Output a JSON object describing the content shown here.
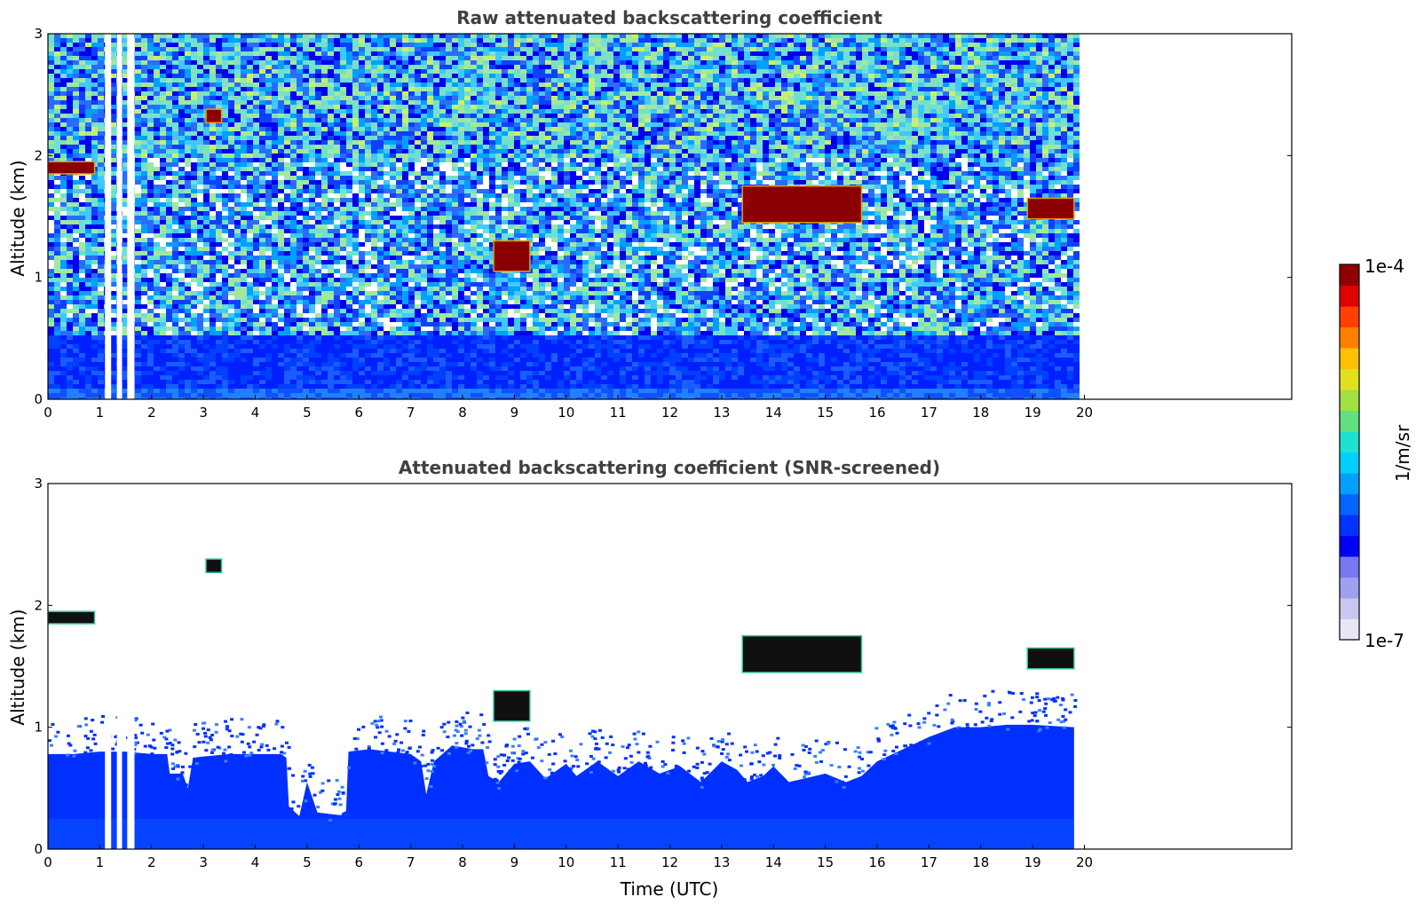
{
  "chart_data": [
    {
      "type": "heatmap",
      "title": "Raw attenuated backscattering coefficient",
      "xlabel": "",
      "ylabel": "Altitude (km)",
      "xlim": [
        0,
        24
      ],
      "ylim": [
        0,
        3
      ],
      "xticks": [
        0,
        1,
        2,
        3,
        4,
        5,
        6,
        7,
        8,
        9,
        10,
        11,
        12,
        13,
        14,
        15,
        16,
        17,
        18,
        19,
        20
      ],
      "yticks": [
        0,
        1,
        2,
        3
      ],
      "data_x_end": 19.8,
      "gaps_x": [
        [
          1.1,
          1.22
        ],
        [
          1.33,
          1.43
        ],
        [
          1.53,
          1.67
        ]
      ],
      "layers": [
        {
          "x": [
            0.0,
            0.9
          ],
          "alt": [
            1.85,
            1.95
          ],
          "level": "high"
        },
        {
          "x": [
            3.05,
            3.35
          ],
          "alt": [
            2.27,
            2.38
          ],
          "level": "high"
        },
        {
          "x": [
            8.6,
            9.3
          ],
          "alt": [
            1.05,
            1.3
          ],
          "level": "high"
        },
        {
          "x": [
            13.4,
            15.7
          ],
          "alt": [
            1.45,
            1.75
          ],
          "level": "high"
        },
        {
          "x": [
            18.9,
            19.8
          ],
          "alt": [
            1.48,
            1.65
          ],
          "level": "high"
        }
      ],
      "grid": false
    },
    {
      "type": "heatmap",
      "title": "Attenuated backscattering coefficient (SNR-screened)",
      "xlabel": "Time (UTC)",
      "ylabel": "Altitude (km)",
      "xlim": [
        0,
        24
      ],
      "ylim": [
        0,
        3
      ],
      "xticks": [
        0,
        1,
        2,
        3,
        4,
        5,
        6,
        7,
        8,
        9,
        10,
        11,
        12,
        13,
        14,
        15,
        16,
        17,
        18,
        19,
        20
      ],
      "yticks": [
        0,
        1,
        2,
        3
      ],
      "data_x_end": 19.8,
      "boundary_layer_top": [
        [
          0.0,
          0.78
        ],
        [
          0.5,
          0.78
        ],
        [
          1.0,
          0.8
        ],
        [
          1.5,
          0.8
        ],
        [
          2.0,
          0.78
        ],
        [
          2.3,
          0.78
        ],
        [
          2.35,
          0.62
        ],
        [
          2.6,
          0.62
        ],
        [
          2.7,
          0.5
        ],
        [
          2.8,
          0.75
        ],
        [
          3.0,
          0.76
        ],
        [
          3.5,
          0.78
        ],
        [
          4.0,
          0.78
        ],
        [
          4.5,
          0.78
        ],
        [
          4.6,
          0.75
        ],
        [
          4.65,
          0.35
        ],
        [
          4.85,
          0.27
        ],
        [
          5.0,
          0.55
        ],
        [
          5.2,
          0.3
        ],
        [
          5.6,
          0.28
        ],
        [
          5.75,
          0.28
        ],
        [
          5.8,
          0.8
        ],
        [
          6.2,
          0.82
        ],
        [
          6.6,
          0.8
        ],
        [
          7.0,
          0.78
        ],
        [
          7.2,
          0.72
        ],
        [
          7.3,
          0.45
        ],
        [
          7.45,
          0.72
        ],
        [
          7.8,
          0.85
        ],
        [
          8.2,
          0.82
        ],
        [
          8.4,
          0.82
        ],
        [
          8.5,
          0.6
        ],
        [
          8.7,
          0.55
        ],
        [
          9.0,
          0.7
        ],
        [
          9.3,
          0.72
        ],
        [
          9.6,
          0.58
        ],
        [
          10.0,
          0.7
        ],
        [
          10.2,
          0.6
        ],
        [
          10.6,
          0.72
        ],
        [
          11.0,
          0.6
        ],
        [
          11.4,
          0.72
        ],
        [
          11.8,
          0.62
        ],
        [
          12.2,
          0.68
        ],
        [
          12.6,
          0.55
        ],
        [
          13.0,
          0.72
        ],
        [
          13.3,
          0.65
        ],
        [
          13.5,
          0.55
        ],
        [
          13.8,
          0.6
        ],
        [
          14.0,
          0.68
        ],
        [
          14.3,
          0.55
        ],
        [
          14.6,
          0.58
        ],
        [
          15.0,
          0.62
        ],
        [
          15.4,
          0.55
        ],
        [
          15.7,
          0.6
        ],
        [
          16.0,
          0.72
        ],
        [
          16.4,
          0.8
        ],
        [
          17.0,
          0.92
        ],
        [
          17.5,
          1.0
        ],
        [
          18.0,
          1.0
        ],
        [
          18.5,
          1.02
        ],
        [
          19.0,
          1.02
        ],
        [
          19.8,
          1.0
        ]
      ],
      "gaps_x": [
        [
          1.1,
          1.22
        ],
        [
          1.33,
          1.43
        ],
        [
          1.53,
          1.67
        ]
      ],
      "layers": [
        {
          "x": [
            0.0,
            0.9
          ],
          "alt": [
            1.85,
            1.95
          ],
          "level": "saturated"
        },
        {
          "x": [
            3.05,
            3.35
          ],
          "alt": [
            2.27,
            2.38
          ],
          "level": "saturated"
        },
        {
          "x": [
            8.6,
            9.3
          ],
          "alt": [
            1.05,
            1.3
          ],
          "level": "saturated"
        },
        {
          "x": [
            13.4,
            15.7
          ],
          "alt": [
            1.45,
            1.75
          ],
          "level": "saturated"
        },
        {
          "x": [
            18.9,
            19.8
          ],
          "alt": [
            1.48,
            1.65
          ],
          "level": "saturated"
        }
      ],
      "grid": false
    }
  ],
  "colorbar": {
    "label": "1/m/sr",
    "min_label": "1e-7",
    "max_label": "1e-4",
    "scale": "log",
    "colors": [
      "#e6e6f5",
      "#c8c8ee",
      "#a0a0ee",
      "#7878f0",
      "#0000ff",
      "#0033ff",
      "#0066ff",
      "#00a0ff",
      "#00d0ff",
      "#20e0d0",
      "#60e080",
      "#a0e040",
      "#e0e020",
      "#ffc000",
      "#ff8000",
      "#ff4000",
      "#e00000",
      "#900000"
    ]
  }
}
